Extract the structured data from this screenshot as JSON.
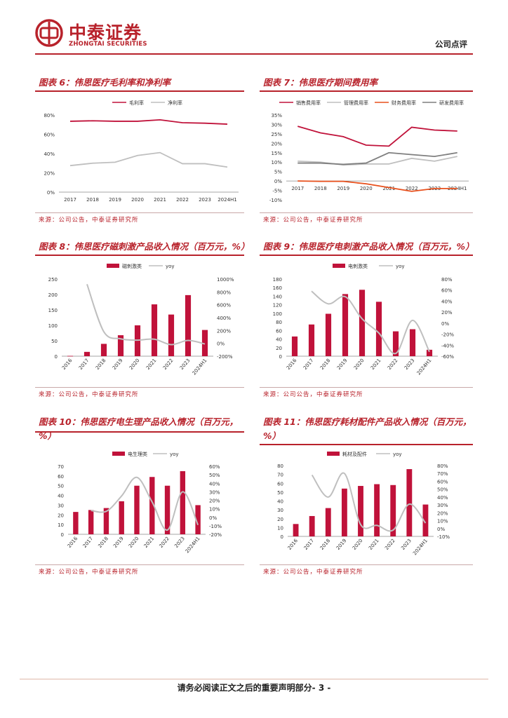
{
  "header": {
    "brand_cn": "中泰证券",
    "brand_en": "ZHONGTAI SECURITIES",
    "report_type": "公司点评",
    "brand_color": "#b8222b"
  },
  "charts": [
    {
      "id": "fig6",
      "title": "图表 6：伟思医疗毛利率和净利率",
      "source": "来源：公司公告，中泰证券研究所"
    },
    {
      "id": "fig7",
      "title": "图表 7：伟思医疗期间费用率",
      "source": "来源：公司公告，中泰证券研究所"
    },
    {
      "id": "fig8",
      "title": "图表 8：伟思医疗磁刺激产品收入情况（百万元，%）",
      "source": "来源：公司公告，中泰证券研究所"
    },
    {
      "id": "fig9",
      "title": "图表 9：伟思医疗电刺激产品收入情况（百万元，%）",
      "source": "来源：公司公告，中泰证券研究所"
    },
    {
      "id": "fig10",
      "title": "图表 10：伟思医疗电生理产品收入情况（百万元，%）",
      "source": "来源：公司公告，中泰证券研究所"
    },
    {
      "id": "fig11",
      "title": "图表 11：伟思医疗耗材配件产品收入情况（百万元，%）",
      "source": "来源：公司公告，中泰证券研究所"
    }
  ],
  "chart_data": [
    {
      "type": "line",
      "id": "fig6",
      "title": "图表 6：伟思医疗毛利率和净利率",
      "categories": [
        "2017",
        "2018",
        "2019",
        "2020",
        "2021",
        "2022",
        "2023",
        "2024H1"
      ],
      "series": [
        {
          "name": "毛利率",
          "color": "#c0123a",
          "values": [
            73.5,
            74,
            73.5,
            73.5,
            75,
            72,
            71.5,
            70.5
          ]
        },
        {
          "name": "净利率",
          "color": "#bfbfbf",
          "values": [
            27.5,
            30,
            31,
            38,
            41,
            29.5,
            29.5,
            26
          ]
        }
      ],
      "ylim": [
        0,
        80
      ],
      "yticks": [
        "0%",
        "20%",
        "40%",
        "60%",
        "80%"
      ],
      "ytick_values": [
        0,
        20,
        40,
        60,
        80
      ]
    },
    {
      "type": "line",
      "id": "fig7",
      "title": "图表 7：伟思医疗期间费用率",
      "categories": [
        "2017",
        "2018",
        "2019",
        "2020",
        "2021",
        "2022",
        "2023",
        "2024H1"
      ],
      "series": [
        {
          "name": "销售费用率",
          "color": "#c0123a",
          "values": [
            29,
            25.5,
            23.5,
            19,
            18.5,
            28.5,
            27,
            26.5
          ]
        },
        {
          "name": "管理费用率",
          "color": "#bfbfbf",
          "values": [
            10.5,
            10,
            8.5,
            9,
            9,
            12,
            10.5,
            13
          ]
        },
        {
          "name": "财务费用率",
          "color": "#e8501c",
          "values": [
            0,
            -0.2,
            -0.2,
            -1.5,
            -3.5,
            -5.5,
            -4,
            -4
          ]
        },
        {
          "name": "研发费用率",
          "color": "#7f7f7f",
          "values": [
            9.5,
            9.5,
            8.8,
            9.5,
            15,
            14,
            13,
            15
          ]
        }
      ],
      "ylim": [
        -10,
        35
      ],
      "yticks": [
        "-10%",
        "-5%",
        "0%",
        "5%",
        "10%",
        "15%",
        "20%",
        "25%",
        "30%",
        "35%"
      ],
      "ytick_values": [
        -10,
        -5,
        0,
        5,
        10,
        15,
        20,
        25,
        30,
        35
      ]
    },
    {
      "type": "bar+line",
      "id": "fig8",
      "title": "图表 8：伟思医疗磁刺激产品收入情况（百万元，%）",
      "categories": [
        "2016",
        "2017",
        "2018",
        "2019",
        "2020",
        "2021",
        "2022",
        "2023",
        "2024H1"
      ],
      "bar_series": {
        "name": "磁刺激类",
        "color": "#c0123a",
        "values": [
          1,
          14,
          40,
          68,
          100,
          168,
          135,
          198,
          85
        ]
      },
      "line_series": {
        "name": "yoy",
        "color": "#bfbfbf",
        "values": [
          null,
          920,
          180,
          70,
          50,
          65,
          -20,
          45,
          -10
        ]
      },
      "y_left": {
        "ticks": [
          "0",
          "50",
          "100",
          "150",
          "200",
          "250"
        ],
        "values": [
          0,
          50,
          100,
          150,
          200,
          250
        ],
        "range": [
          0,
          250
        ]
      },
      "y_right": {
        "ticks": [
          "-200%",
          "0%",
          "200%",
          "400%",
          "600%",
          "800%",
          "1000%"
        ],
        "values": [
          -200,
          0,
          200,
          400,
          600,
          800,
          1000
        ],
        "range": [
          -200,
          1000
        ]
      }
    },
    {
      "type": "bar+line",
      "id": "fig9",
      "title": "图表 9：伟思医疗电刺激产品收入情况（百万元，%）",
      "categories": [
        "2016",
        "2017",
        "2018",
        "2019",
        "2020",
        "2021",
        "2022",
        "2023",
        "2024H1"
      ],
      "bar_series": {
        "name": "电刺激类",
        "color": "#c0123a",
        "values": [
          46,
          74,
          99,
          145,
          155,
          127,
          58,
          63,
          15
        ]
      },
      "line_series": {
        "name": "yoy",
        "color": "#bfbfbf",
        "values": [
          null,
          58,
          35,
          48,
          8,
          -18,
          -55,
          5,
          -52
        ]
      },
      "y_left": {
        "ticks": [
          "0",
          "20",
          "40",
          "60",
          "80",
          "100",
          "120",
          "140",
          "160",
          "180"
        ],
        "values": [
          0,
          20,
          40,
          60,
          80,
          100,
          120,
          140,
          160,
          180
        ],
        "range": [
          0,
          180
        ]
      },
      "y_right": {
        "ticks": [
          "-60%",
          "-40%",
          "-20%",
          "0%",
          "20%",
          "40%",
          "60%",
          "80%"
        ],
        "values": [
          -60,
          -40,
          -20,
          0,
          20,
          40,
          60,
          80
        ],
        "range": [
          -60,
          80
        ]
      }
    },
    {
      "type": "bar+line",
      "id": "fig10",
      "title": "图表 10：伟思医疗电生理产品收入情况（百万元，%）",
      "categories": [
        "2016",
        "2017",
        "2018",
        "2019",
        "2020",
        "2021",
        "2022",
        "2023",
        "2024H1"
      ],
      "bar_series": {
        "name": "电生理类",
        "color": "#c0123a",
        "values": [
          23,
          25,
          27,
          34,
          50,
          59,
          50,
          65,
          30
        ]
      },
      "line_series": {
        "name": "yoy",
        "color": "#bfbfbf",
        "values": [
          null,
          8,
          7,
          25,
          47,
          18,
          -15,
          30,
          -9
        ]
      },
      "y_left": {
        "ticks": [
          "0",
          "10",
          "20",
          "30",
          "40",
          "50",
          "60",
          "70"
        ],
        "values": [
          0,
          10,
          20,
          30,
          40,
          50,
          60,
          70
        ],
        "range": [
          0,
          70
        ]
      },
      "y_right": {
        "ticks": [
          "-20%",
          "-10%",
          "0%",
          "10%",
          "20%",
          "30%",
          "40%",
          "50%",
          "60%"
        ],
        "values": [
          -20,
          -10,
          0,
          10,
          20,
          30,
          40,
          50,
          60
        ],
        "range": [
          -20,
          60
        ]
      }
    },
    {
      "type": "bar+line",
      "id": "fig11",
      "title": "图表 11：伟思医疗耗材配件产品收入情况（百万元，%）",
      "categories": [
        "2016",
        "2017",
        "2018",
        "2019",
        "2020",
        "2021",
        "2022",
        "2023",
        "2024H1"
      ],
      "bar_series": {
        "name": "耗材及配件",
        "color": "#c0123a",
        "values": [
          14,
          23,
          32,
          54,
          57,
          59,
          58,
          76,
          36
        ]
      },
      "line_series": {
        "name": "yoy",
        "color": "#bfbfbf",
        "values": [
          null,
          68,
          40,
          70,
          5,
          4,
          -2,
          31,
          7
        ]
      },
      "y_left": {
        "ticks": [
          "0",
          "10",
          "20",
          "30",
          "40",
          "50",
          "60",
          "70",
          "80"
        ],
        "values": [
          0,
          10,
          20,
          30,
          40,
          50,
          60,
          70,
          80
        ],
        "range": [
          0,
          80
        ]
      },
      "y_right": {
        "ticks": [
          "-10%",
          "0%",
          "10%",
          "20%",
          "30%",
          "40%",
          "50%",
          "60%",
          "70%",
          "80%"
        ],
        "values": [
          -10,
          0,
          10,
          20,
          30,
          40,
          50,
          60,
          70,
          80
        ],
        "range": [
          -10,
          80
        ]
      }
    }
  ],
  "footer": {
    "disclaimer": "请务必阅读正文之后的重要声明部分",
    "page": "- 3 -"
  }
}
